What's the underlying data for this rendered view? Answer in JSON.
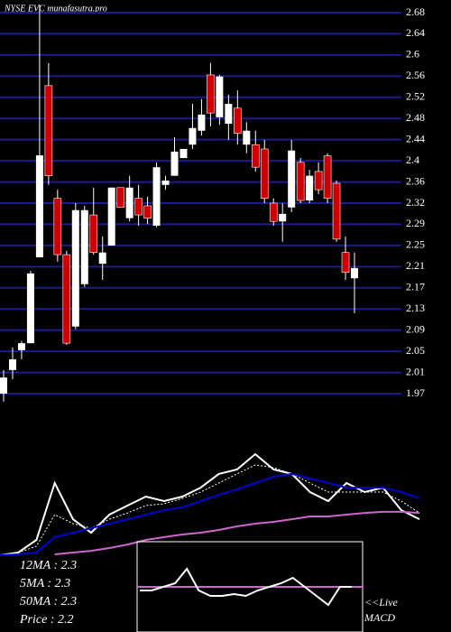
{
  "chart_data": [
    {
      "type": "candlestick",
      "title": "NYSE EVC munafasutra.pro",
      "open": [
        1.97,
        2.014,
        2.051,
        2.064,
        2.224,
        2.544,
        2.334,
        2.229,
        2.095,
        2.174,
        2.303,
        2.212,
        2.246,
        2.354,
        2.297,
        2.334,
        2.32,
        2.283,
        2.359,
        2.376,
        2.409,
        2.434,
        2.46,
        2.564,
        2.485,
        2.473,
        2.502,
        2.434,
        2.434,
        2.426,
        2.325,
        2.291,
        2.317,
        2.401,
        2.33,
        2.384,
        2.413,
        2.362,
        2.233,
        2.185
      ],
      "high": [
        2.014,
        2.056,
        2.068,
        2.199,
        2.695,
        2.586,
        2.35,
        2.236,
        2.325,
        2.32,
        2.354,
        2.263,
        2.354,
        2.354,
        2.376,
        2.359,
        2.337,
        2.401,
        2.376,
        2.448,
        2.426,
        2.51,
        2.519,
        2.586,
        2.564,
        2.527,
        2.535,
        2.476,
        2.46,
        2.443,
        2.334,
        2.325,
        2.443,
        2.409,
        2.387,
        2.401,
        2.418,
        2.367,
        2.263,
        2.233
      ],
      "low": [
        1.955,
        1.997,
        2.034,
        2.064,
        2.224,
        2.359,
        2.216,
        2.061,
        2.09,
        2.169,
        2.229,
        2.182,
        2.246,
        2.317,
        2.291,
        2.283,
        2.286,
        2.28,
        2.35,
        2.376,
        2.409,
        2.426,
        2.451,
        2.468,
        2.471,
        2.443,
        2.434,
        2.418,
        2.384,
        2.325,
        2.283,
        2.253,
        2.308,
        2.325,
        2.325,
        2.342,
        2.325,
        2.253,
        2.182,
        2.12
      ],
      "close": [
        2.0,
        2.034,
        2.064,
        2.194,
        2.414,
        2.376,
        2.229,
        2.064,
        2.312,
        2.312,
        2.233,
        2.233,
        2.354,
        2.317,
        2.354,
        2.303,
        2.297,
        2.392,
        2.367,
        2.421,
        2.426,
        2.465,
        2.49,
        2.493,
        2.561,
        2.51,
        2.455,
        2.46,
        2.392,
        2.334,
        2.291,
        2.305,
        2.423,
        2.33,
        2.376,
        2.35,
        2.334,
        2.258,
        2.196,
        2.204
      ],
      "up_color": "#ffffff",
      "down_color": "#cc0000",
      "ylim": [
        1.97,
        2.68
      ],
      "yticks": [
        2.68,
        {
          "value": 2.6406,
          "label": "2.64"
        },
        {
          "value": 2.6011,
          "label": "2.6"
        },
        {
          "value": 2.5617,
          "label": "2.56"
        },
        {
          "value": 2.5222,
          "label": "2.52"
        },
        {
          "value": 2.4828,
          "label": "2.48"
        },
        {
          "value": 2.4433,
          "label": "2.44"
        },
        {
          "value": 2.4039,
          "label": "2.4"
        },
        {
          "value": 2.3644,
          "label": "2.36"
        },
        {
          "value": 2.325,
          "label": "2.32"
        },
        {
          "value": 2.2856,
          "label": "2.29"
        },
        {
          "value": 2.2461,
          "label": "2.25"
        },
        {
          "value": 2.2067,
          "label": "2.21"
        },
        {
          "value": 2.1672,
          "label": "2.17"
        },
        {
          "value": 2.1278,
          "label": "2.13"
        },
        {
          "value": 2.0883,
          "label": "2.09"
        },
        {
          "value": 2.0489,
          "label": "2.05"
        },
        {
          "value": 2.0094,
          "label": "2.01"
        },
        1.97
      ],
      "grid": true,
      "grid_color": "#1c1c8c"
    },
    {
      "type": "line",
      "ylim": [
        0,
        100
      ],
      "series": [
        {
          "color": "#ffffff",
          "values": [
            3.6,
            5.7,
            15.7,
            60.7,
            32.1,
            21.4,
            35.7,
            42.9,
            50,
            46.4,
            50,
            57.1,
            67.9,
            71.4,
            83.6,
            71.4,
            67.9,
            53.6,
            46.4,
            60.7,
            53.6,
            57.1,
            39.3,
            32.1
          ]
        },
        {
          "color": "#ffffff",
          "dashed": true,
          "values": [
            3.6,
            5.7,
            10.7,
            35.7,
            28.6,
            25,
            32.1,
            37.1,
            42.9,
            44.3,
            48.6,
            53.6,
            60.7,
            67.9,
            75,
            72.9,
            67.9,
            60.7,
            53.6,
            53.6,
            53.6,
            53.6,
            46.4,
            37.1
          ]
        },
        {
          "color": "#0000cc",
          "values": [
            3.6,
            4.3,
            5.7,
            17.9,
            21.4,
            25,
            28.6,
            32.1,
            35.7,
            39.3,
            41.4,
            46.4,
            51.4,
            55.7,
            60.7,
            65.7,
            67.9,
            64.3,
            60.7,
            57.1,
            57.1,
            57.1,
            53.6,
            48.6
          ]
        },
        {
          "color": "#cc66cc",
          "values": [
            null,
            null,
            null,
            4.3,
            5.7,
            7.1,
            9.3,
            12.1,
            15.7,
            17.9,
            20,
            21.4,
            23.6,
            26.4,
            28.6,
            30,
            32.1,
            34.3,
            34.3,
            35.7,
            37.1,
            37.9,
            37.9,
            37.1
          ]
        }
      ],
      "stats": [
        "12MA : 2.3",
        "5MA : 2.3",
        "50MA : 2.3",
        "Price   : 2.2"
      ]
    },
    {
      "type": "line",
      "ylim": [
        -25,
        25
      ],
      "baseline_color": "#cc66cc",
      "series": [
        {
          "color": "#ffffff",
          "values": [
            -2,
            -2,
            0,
            2,
            10,
            -2,
            -5,
            -5,
            -4,
            -5,
            -2,
            0,
            2,
            5,
            0,
            -5,
            -10,
            0,
            0
          ]
        }
      ],
      "label_lines": [
        "<<Live",
        "MACD"
      ]
    }
  ]
}
